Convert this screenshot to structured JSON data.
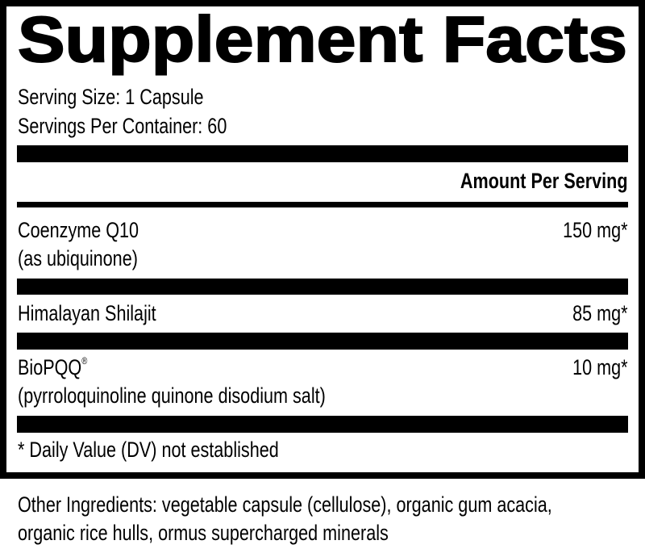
{
  "title": "Supplement Facts",
  "serving_size": "Serving Size: 1 Capsule",
  "servings_per_container": "Servings Per Container: 60",
  "amount_header": "Amount Per Serving",
  "ingredients": [
    {
      "name": "Coenzyme Q10",
      "detail": "(as ubiquinone)",
      "amount": "150 mg*"
    },
    {
      "name": "Himalayan Shilajit",
      "amount": "85 mg*"
    },
    {
      "name": "BioPQQ",
      "mark": "®",
      "detail": "(pyrroloquinoline quinone disodium salt)",
      "amount": "10 mg*"
    }
  ],
  "footnote": "* Daily Value (DV) not established",
  "other_ingredients": {
    "line1": "Other Ingredients: vegetable capsule (cellulose), organic gum acacia,",
    "line2": "organic rice hulls, ormus supercharged minerals"
  }
}
